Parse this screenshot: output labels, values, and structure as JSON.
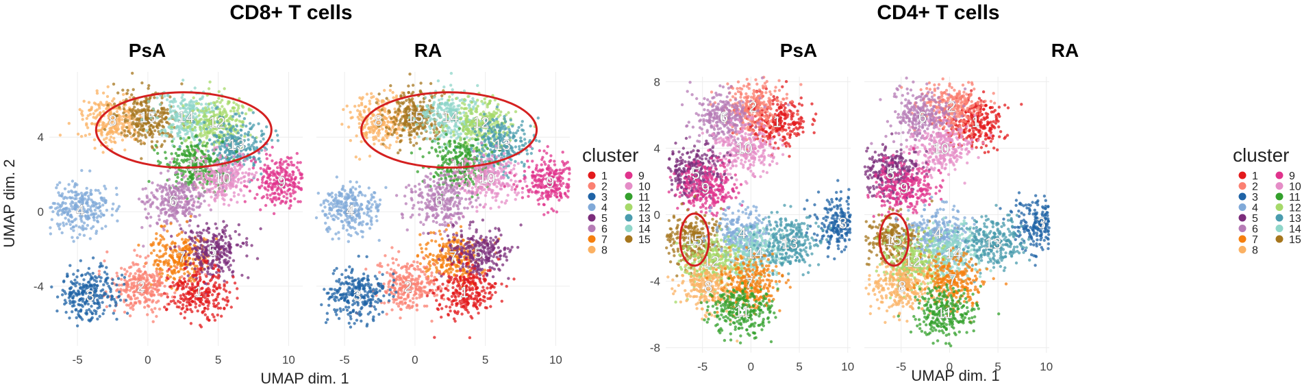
{
  "chart_data": [
    {
      "type": "scatter",
      "group_title": "CD8+ T cells",
      "panels": [
        {
          "title": "PsA",
          "highlight": "ellipse around clusters 8, 15, 14, 12, 13, 11",
          "cluster_labels": [
            {
              "cluster": "8",
              "x": -2.5,
              "y": 4.9
            },
            {
              "cluster": "15",
              "x": 0.0,
              "y": 5.1
            },
            {
              "cluster": "14",
              "x": 2.7,
              "y": 5.1
            },
            {
              "cluster": "12",
              "x": 4.9,
              "y": 4.8
            },
            {
              "cluster": "13",
              "x": 6.3,
              "y": 3.6
            },
            {
              "cluster": "11",
              "x": 3.3,
              "y": 2.5
            },
            {
              "cluster": "10",
              "x": 5.3,
              "y": 1.8
            },
            {
              "cluster": "9",
              "x": 9.5,
              "y": 1.6
            },
            {
              "cluster": "6",
              "x": 1.8,
              "y": 0.6
            },
            {
              "cluster": "4",
              "x": -4.8,
              "y": 0.1
            },
            {
              "cluster": "7",
              "x": 2.4,
              "y": -2.4
            },
            {
              "cluster": "5",
              "x": 4.6,
              "y": -2.1
            },
            {
              "cluster": "2",
              "x": -0.5,
              "y": -4.0
            },
            {
              "cluster": "1",
              "x": 3.6,
              "y": -4.3
            },
            {
              "cluster": "3",
              "x": -4.1,
              "y": -4.5
            }
          ]
        },
        {
          "title": "RA",
          "highlight": "ellipse around clusters 8, 15, 14, 12, 13, 11",
          "cluster_labels": [
            {
              "cluster": "8",
              "x": -2.6,
              "y": 4.9
            },
            {
              "cluster": "15",
              "x": 0.0,
              "y": 5.1
            },
            {
              "cluster": "14",
              "x": 2.5,
              "y": 5.1
            },
            {
              "cluster": "12",
              "x": 4.7,
              "y": 4.8
            },
            {
              "cluster": "13",
              "x": 6.2,
              "y": 3.6
            },
            {
              "cluster": "11",
              "x": 3.1,
              "y": 2.5
            },
            {
              "cluster": "10",
              "x": 5.1,
              "y": 1.8
            },
            {
              "cluster": "9",
              "x": 9.6,
              "y": 1.6
            },
            {
              "cluster": "6",
              "x": 1.7,
              "y": 0.6
            },
            {
              "cluster": "4",
              "x": -4.6,
              "y": 0.1
            },
            {
              "cluster": "7",
              "x": 2.7,
              "y": -2.4
            },
            {
              "cluster": "5",
              "x": 4.5,
              "y": -2.2
            },
            {
              "cluster": "2",
              "x": -0.5,
              "y": -4.0
            },
            {
              "cluster": "1",
              "x": 3.5,
              "y": -4.3
            },
            {
              "cluster": "3",
              "x": -4.1,
              "y": -4.5
            }
          ]
        }
      ],
      "xlabel": "UMAP dim. 1",
      "ylabel": "UMAP dim. 2",
      "xlim": [
        -7,
        11
      ],
      "ylim": [
        -7.2,
        7.5
      ],
      "xticks": [
        -5,
        0,
        5,
        10
      ],
      "yticks": [
        -4,
        0,
        4
      ],
      "grid": true,
      "legend": {
        "title": "cluster",
        "placement": "right"
      }
    },
    {
      "type": "scatter",
      "group_title": "CD4+ T cells",
      "panels": [
        {
          "title": "PsA",
          "highlight": "ellipse around cluster 15",
          "cluster_labels": [
            {
              "cluster": "1",
              "x": 2.7,
              "y": 5.6
            },
            {
              "cluster": "2",
              "x": 0.2,
              "y": 6.5
            },
            {
              "cluster": "6",
              "x": -2.8,
              "y": 5.9
            },
            {
              "cluster": "10",
              "x": -0.7,
              "y": 4.0
            },
            {
              "cluster": "5",
              "x": -5.7,
              "y": 2.5
            },
            {
              "cluster": "9",
              "x": -4.7,
              "y": 1.6
            },
            {
              "cluster": "3",
              "x": 9.5,
              "y": -0.5
            },
            {
              "cluster": "15",
              "x": -5.9,
              "y": -1.5
            },
            {
              "cluster": "4",
              "x": -0.9,
              "y": -1.1
            },
            {
              "cluster": "14",
              "x": 0.4,
              "y": -2.3
            },
            {
              "cluster": "13",
              "x": 4.0,
              "y": -1.7
            },
            {
              "cluster": "12",
              "x": -4.1,
              "y": -2.8
            },
            {
              "cluster": "8",
              "x": -4.4,
              "y": -4.3
            },
            {
              "cluster": "7",
              "x": -0.2,
              "y": -4.1
            },
            {
              "cluster": "11",
              "x": -0.9,
              "y": -5.8
            }
          ]
        },
        {
          "title": "RA",
          "highlight": "ellipse around cluster 15",
          "cluster_labels": [
            {
              "cluster": "1",
              "x": 2.7,
              "y": 5.6
            },
            {
              "cluster": "2",
              "x": 0.2,
              "y": 6.5
            },
            {
              "cluster": "6",
              "x": -2.8,
              "y": 5.9
            },
            {
              "cluster": "10",
              "x": -0.9,
              "y": 4.0
            },
            {
              "cluster": "5",
              "x": -6.1,
              "y": 2.5
            },
            {
              "cluster": "9",
              "x": -4.7,
              "y": 1.6
            },
            {
              "cluster": "3",
              "x": 9.5,
              "y": -0.5
            },
            {
              "cluster": "15",
              "x": -5.8,
              "y": -1.5
            },
            {
              "cluster": "4",
              "x": -1.2,
              "y": -1.1
            },
            {
              "cluster": "14",
              "x": 0.4,
              "y": -2.3
            },
            {
              "cluster": "13",
              "x": 4.5,
              "y": -1.7
            },
            {
              "cluster": "12",
              "x": -3.8,
              "y": -2.8
            },
            {
              "cluster": "8",
              "x": -4.9,
              "y": -4.3
            },
            {
              "cluster": "7",
              "x": 0.3,
              "y": -3.9
            },
            {
              "cluster": "11",
              "x": -0.5,
              "y": -5.9
            }
          ]
        }
      ],
      "xlabel": "UMAP dim. 1",
      "ylabel": "",
      "xlim": [
        -8.8,
        10.3
      ],
      "ylim": [
        -8.3,
        8.3
      ],
      "xticks": [
        -5,
        0,
        5,
        10
      ],
      "yticks": [
        -8,
        -4,
        0,
        4,
        8
      ],
      "grid": true,
      "legend": {
        "title": "cluster",
        "placement": "right"
      }
    }
  ],
  "clusters": [
    "1",
    "2",
    "3",
    "4",
    "5",
    "6",
    "7",
    "8",
    "9",
    "10",
    "11",
    "12",
    "13",
    "14",
    "15"
  ],
  "colors": {
    "1": "#e31a1c",
    "2": "#fb8072",
    "3": "#1f63a6",
    "4": "#80a9d8",
    "5": "#7b2d7b",
    "6": "#b57bb5",
    "7": "#f57f0e",
    "8": "#fbb163",
    "9": "#e0338c",
    "10": "#e58dc7",
    "11": "#33a02c",
    "12": "#a6d96a",
    "13": "#4a9cae",
    "14": "#8fd6c9",
    "15": "#a6761d",
    "highlight": "#d42020"
  }
}
